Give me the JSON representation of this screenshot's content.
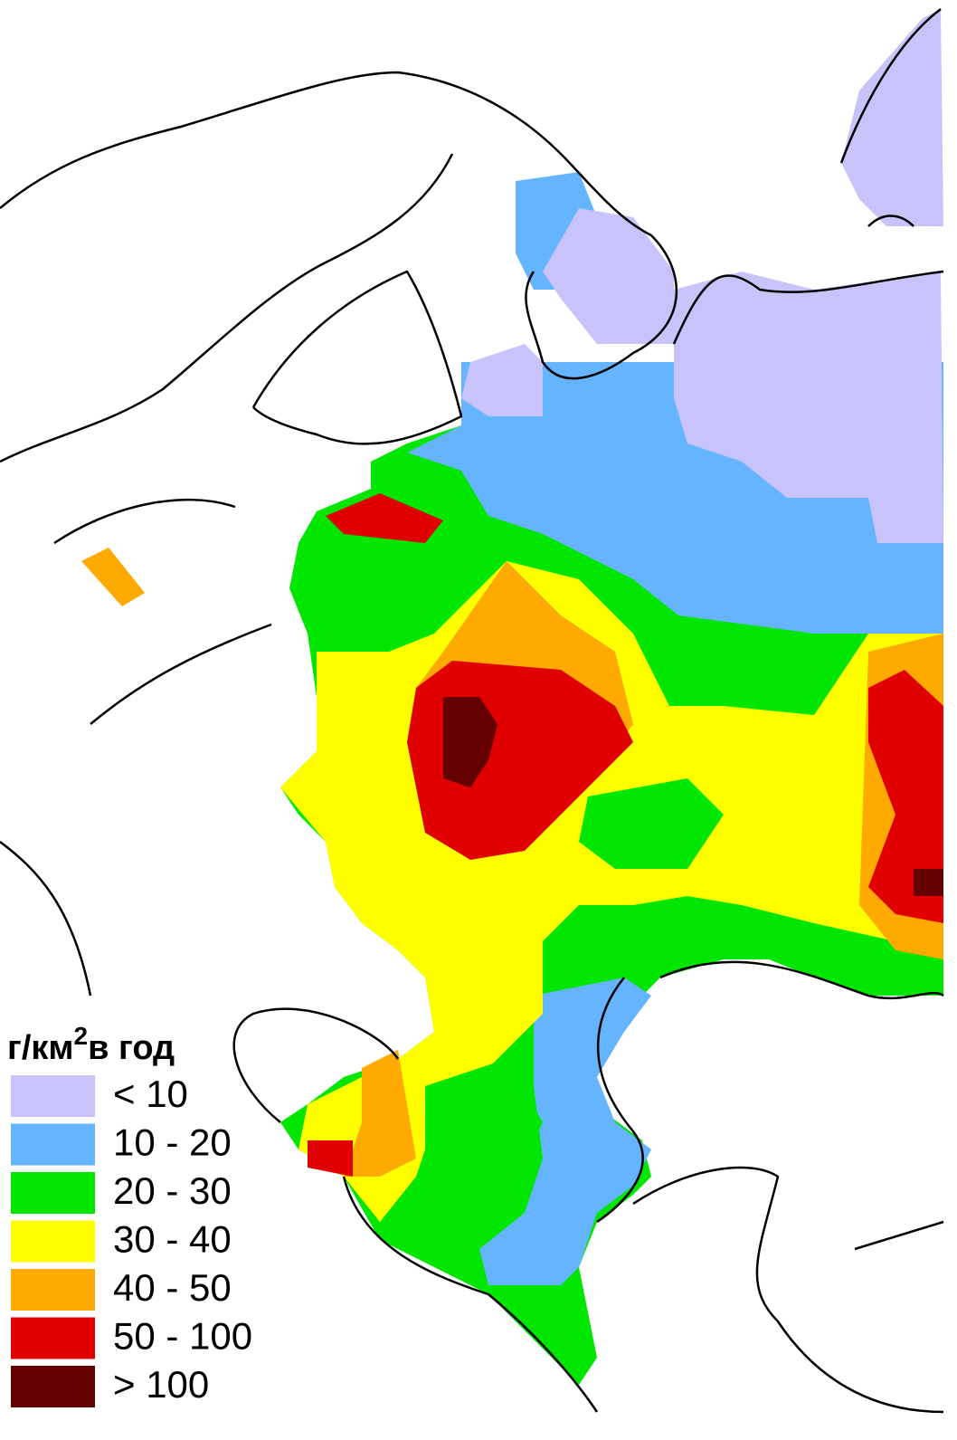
{
  "legend": {
    "title": {
      "text": "г/км",
      "superscript": "2",
      "suffix": "в год"
    },
    "items": [
      {
        "label": "< 10",
        "color": "#c8c3fa"
      },
      {
        "label": "10 - 20",
        "color": "#64b4ff"
      },
      {
        "label": "20 - 30",
        "color": "#00e600"
      },
      {
        "label": "30 - 40",
        "color": "#ffff00"
      },
      {
        "label": "40 - 50",
        "color": "#ffaa00"
      },
      {
        "label": "50 - 100",
        "color": "#e00000"
      },
      {
        "label": "> 100",
        "color": "#640000"
      }
    ]
  }
}
